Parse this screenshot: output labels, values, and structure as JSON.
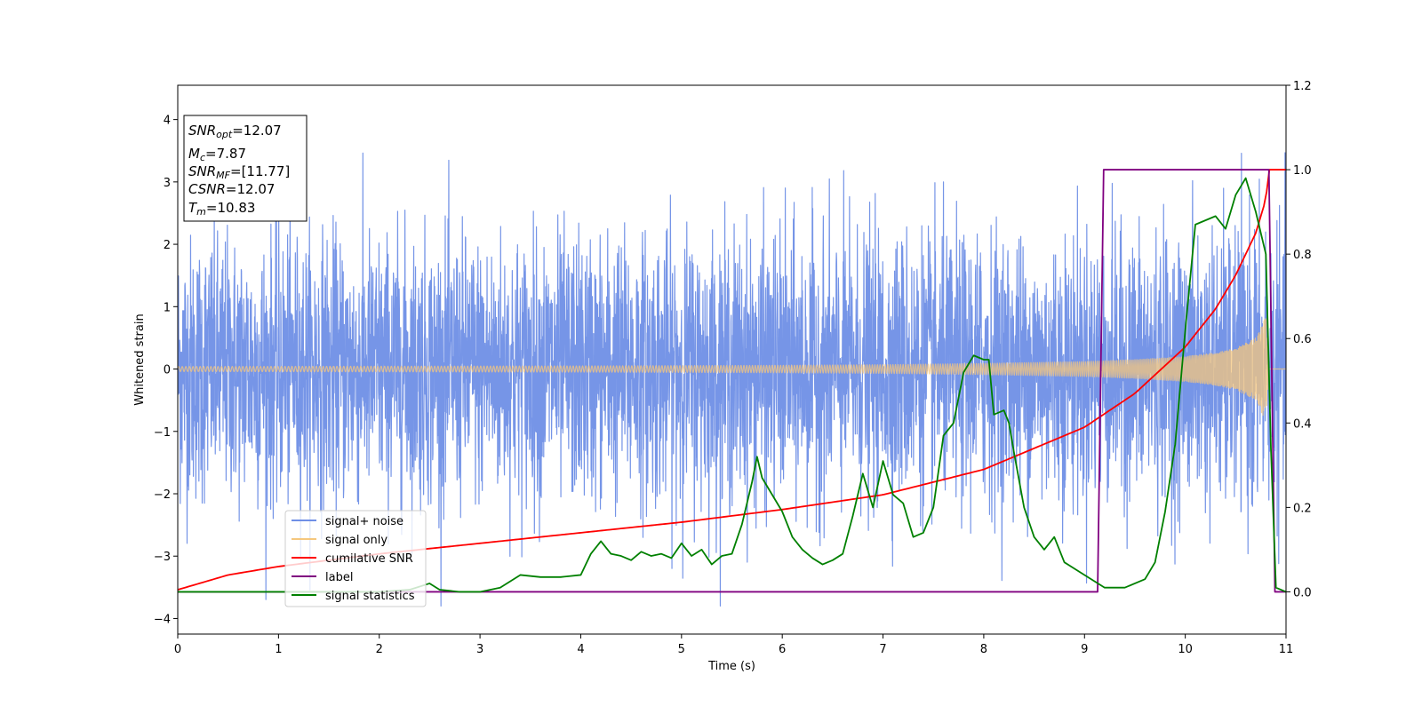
{
  "chart_data": {
    "type": "line",
    "xlabel": "Time (s)",
    "ylabel": "Whitened strain",
    "xlim": [
      0,
      11
    ],
    "ylim_left": [
      -4.25,
      4.55
    ],
    "ylim_right": [
      -0.1,
      1.2
    ],
    "xticks": [
      "0",
      "1",
      "2",
      "3",
      "4",
      "5",
      "6",
      "7",
      "8",
      "9",
      "10",
      "11"
    ],
    "yticks_left": [
      "−4",
      "−3",
      "−2",
      "−1",
      "0",
      "1",
      "2",
      "3",
      "4"
    ],
    "yticks_left_values": [
      -4,
      -3,
      -2,
      -1,
      0,
      1,
      2,
      3,
      4
    ],
    "yticks_right": [
      "0.0",
      "0.2",
      "0.4",
      "0.6",
      "0.8",
      "1.0",
      "1.2"
    ],
    "yticks_right_values": [
      0.0,
      0.2,
      0.4,
      0.6,
      0.8,
      1.0,
      1.2
    ],
    "grid": false,
    "legend_position": "lower-left",
    "legend": [
      {
        "name": "signal+ noise",
        "color": "#6f8fe6"
      },
      {
        "name": "signal only",
        "color": "#f5c77e"
      },
      {
        "name": "cumilative SNR",
        "color": "#ff0000"
      },
      {
        "name": "label",
        "color": "#800080"
      },
      {
        "name": "signal statistics",
        "color": "#008000"
      }
    ],
    "info_box": {
      "snr_opt": {
        "base": "SNR",
        "sub": "opt",
        "value": "=12.07"
      },
      "mc": {
        "base": "M",
        "sub": "c",
        "value": "=7.87"
      },
      "snr_mf": {
        "base": "SNR",
        "sub": "MF",
        "value": "=[11.77]"
      },
      "csnr": {
        "base": "CSNR",
        "sub": "",
        "value": "=12.07"
      },
      "tm": {
        "base": "T",
        "sub": "m",
        "value": "=10.83"
      }
    },
    "series": [
      {
        "name": "signal+ noise",
        "axis": "left",
        "color": "#6f8fe6",
        "noise_sigma": 1.0,
        "observed_range": [
          -3.8,
          4.15
        ]
      },
      {
        "name": "signal only",
        "axis": "left",
        "color": "#f5c77e",
        "envelope_x": [
          0,
          2,
          4,
          6,
          7,
          8,
          9,
          9.5,
          10,
          10.3,
          10.5,
          10.7,
          10.8,
          10.83,
          11
        ],
        "envelope_y": [
          0.04,
          0.045,
          0.05,
          0.06,
          0.07,
          0.09,
          0.12,
          0.15,
          0.2,
          0.26,
          0.33,
          0.5,
          0.85,
          0.0,
          0.0
        ]
      },
      {
        "name": "cumilative SNR",
        "axis": "right",
        "color": "#ff0000",
        "x": [
          0,
          0.5,
          1,
          2,
          3,
          4,
          5,
          6,
          7,
          8,
          9,
          9.5,
          10,
          10.3,
          10.5,
          10.7,
          10.8,
          10.83,
          11
        ],
        "y": [
          0.005,
          0.04,
          0.06,
          0.09,
          0.115,
          0.14,
          0.165,
          0.195,
          0.23,
          0.29,
          0.39,
          0.47,
          0.58,
          0.67,
          0.75,
          0.85,
          0.93,
          1.0,
          1.0
        ]
      },
      {
        "name": "label",
        "axis": "right",
        "color": "#800080",
        "x": [
          0,
          9.13,
          9.19,
          10.83,
          10.89,
          11
        ],
        "y": [
          0.0,
          0.0,
          1.0,
          1.0,
          0.0,
          0.0
        ]
      },
      {
        "name": "signal statistics",
        "axis": "right",
        "color": "#008000",
        "x": [
          0,
          1,
          2,
          2.3,
          2.5,
          2.6,
          2.8,
          3.0,
          3.2,
          3.4,
          3.6,
          3.8,
          4.0,
          4.1,
          4.2,
          4.3,
          4.4,
          4.5,
          4.6,
          4.7,
          4.8,
          4.9,
          5.0,
          5.1,
          5.2,
          5.3,
          5.4,
          5.5,
          5.6,
          5.7,
          5.75,
          5.8,
          5.9,
          6.0,
          6.1,
          6.2,
          6.3,
          6.4,
          6.5,
          6.6,
          6.7,
          6.8,
          6.9,
          7.0,
          7.1,
          7.2,
          7.3,
          7.4,
          7.5,
          7.6,
          7.7,
          7.8,
          7.9,
          8.0,
          8.05,
          8.1,
          8.2,
          8.25,
          8.3,
          8.4,
          8.5,
          8.6,
          8.7,
          8.8,
          9.0,
          9.2,
          9.4,
          9.6,
          9.7,
          9.8,
          9.9,
          10.0,
          10.1,
          10.2,
          10.3,
          10.4,
          10.5,
          10.6,
          10.7,
          10.8,
          10.85,
          10.9,
          11
        ],
        "y": [
          0.0,
          0.0,
          0.0,
          0.005,
          0.02,
          0.005,
          0.0,
          0.0,
          0.01,
          0.04,
          0.035,
          0.035,
          0.04,
          0.09,
          0.12,
          0.09,
          0.085,
          0.075,
          0.095,
          0.085,
          0.09,
          0.08,
          0.115,
          0.085,
          0.1,
          0.065,
          0.085,
          0.09,
          0.16,
          0.26,
          0.32,
          0.27,
          0.23,
          0.19,
          0.13,
          0.1,
          0.08,
          0.065,
          0.075,
          0.09,
          0.18,
          0.28,
          0.2,
          0.31,
          0.23,
          0.21,
          0.13,
          0.14,
          0.2,
          0.37,
          0.4,
          0.52,
          0.56,
          0.55,
          0.55,
          0.42,
          0.43,
          0.4,
          0.33,
          0.2,
          0.13,
          0.1,
          0.13,
          0.07,
          0.04,
          0.01,
          0.01,
          0.03,
          0.07,
          0.19,
          0.35,
          0.62,
          0.87,
          0.88,
          0.89,
          0.86,
          0.94,
          0.98,
          0.9,
          0.8,
          0.34,
          0.01,
          0.0
        ]
      }
    ]
  }
}
